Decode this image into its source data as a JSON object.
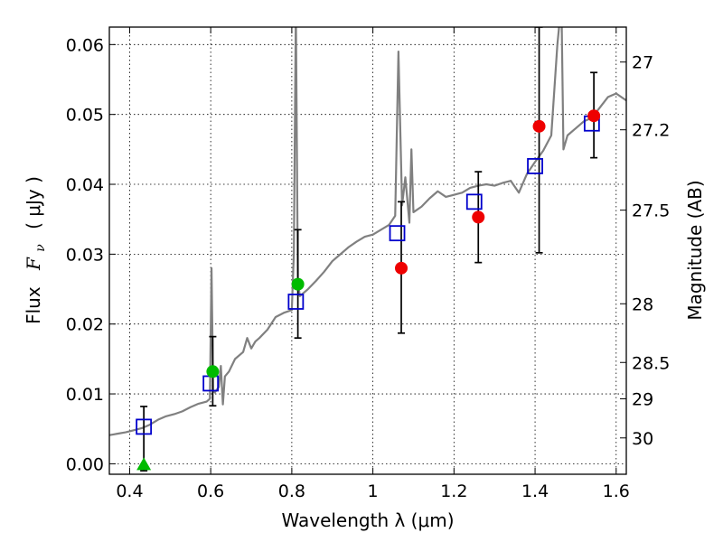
{
  "chart_data": {
    "type": "scatter",
    "title": "",
    "xlabel": "Wavelength  λ (μm)",
    "ylabel": "Flux  F_ν ( μJy )",
    "ylabel_parts": {
      "word": "Flux",
      "symbol": "F",
      "subscript": "ν",
      "unit": "( μJy )"
    },
    "y2label": "Magnitude (AB)",
    "xlim": [
      0.35,
      1.625
    ],
    "ylim": [
      -0.0015,
      0.0625
    ],
    "grid": true,
    "x_ticks": [
      {
        "value": 0.4,
        "label": "0.4"
      },
      {
        "value": 0.6,
        "label": "0.6"
      },
      {
        "value": 0.8,
        "label": "0.8"
      },
      {
        "value": 1.0,
        "label": "1"
      },
      {
        "value": 1.2,
        "label": "1.2"
      },
      {
        "value": 1.4,
        "label": "1.4"
      },
      {
        "value": 1.6,
        "label": "1.6"
      }
    ],
    "y_ticks": [
      {
        "value": 0.0,
        "label": "0.00"
      },
      {
        "value": 0.01,
        "label": "0.01"
      },
      {
        "value": 0.02,
        "label": "0.02"
      },
      {
        "value": 0.03,
        "label": "0.03"
      },
      {
        "value": 0.04,
        "label": "0.04"
      },
      {
        "value": 0.05,
        "label": "0.05"
      },
      {
        "value": 0.06,
        "label": "0.06"
      }
    ],
    "y2_ticks": [
      {
        "label": "27",
        "flux": 0.0575
      },
      {
        "label": "27.2",
        "flux": 0.0478
      },
      {
        "label": "27.5",
        "flux": 0.0363
      },
      {
        "label": "28",
        "flux": 0.0229
      },
      {
        "label": "28.5",
        "flux": 0.0145
      },
      {
        "label": "29",
        "flux": 0.0093
      },
      {
        "label": "30",
        "flux": 0.0037
      }
    ],
    "colors": {
      "model": "#808080",
      "model_points": "#0000cc",
      "detections": "#ee0000",
      "weak_detections": "#00bb00",
      "upper_limit": "#00bb00",
      "errorbars": "#000000"
    },
    "series": [
      {
        "type": "line",
        "points": [
          [
            0.35,
            0.0041
          ],
          [
            0.37,
            0.0043
          ],
          [
            0.39,
            0.0045
          ],
          [
            0.41,
            0.0048
          ],
          [
            0.43,
            0.0051
          ],
          [
            0.45,
            0.0056
          ],
          [
            0.47,
            0.0063
          ],
          [
            0.49,
            0.0068
          ],
          [
            0.51,
            0.0071
          ],
          [
            0.53,
            0.0075
          ],
          [
            0.55,
            0.0081
          ],
          [
            0.57,
            0.0086
          ],
          [
            0.59,
            0.0089
          ],
          [
            0.598,
            0.0093
          ],
          [
            0.602,
            0.028
          ],
          [
            0.606,
            0.0105
          ],
          [
            0.61,
            0.0102
          ],
          [
            0.62,
            0.011
          ],
          [
            0.625,
            0.014
          ],
          [
            0.63,
            0.0085
          ],
          [
            0.635,
            0.0125
          ],
          [
            0.645,
            0.0132
          ],
          [
            0.66,
            0.015
          ],
          [
            0.68,
            0.016
          ],
          [
            0.69,
            0.018
          ],
          [
            0.7,
            0.0165
          ],
          [
            0.71,
            0.0175
          ],
          [
            0.72,
            0.018
          ],
          [
            0.74,
            0.0192
          ],
          [
            0.76,
            0.021
          ],
          [
            0.78,
            0.0216
          ],
          [
            0.8,
            0.022
          ],
          [
            0.805,
            0.03
          ],
          [
            0.81,
            0.065
          ],
          [
            0.815,
            0.026
          ],
          [
            0.82,
            0.024
          ],
          [
            0.84,
            0.025
          ],
          [
            0.86,
            0.0262
          ],
          [
            0.88,
            0.0275
          ],
          [
            0.9,
            0.029
          ],
          [
            0.92,
            0.03
          ],
          [
            0.94,
            0.031
          ],
          [
            0.96,
            0.0318
          ],
          [
            0.98,
            0.0325
          ],
          [
            1.0,
            0.0328
          ],
          [
            1.02,
            0.0335
          ],
          [
            1.04,
            0.0342
          ],
          [
            1.055,
            0.0355
          ],
          [
            1.063,
            0.059
          ],
          [
            1.072,
            0.037
          ],
          [
            1.08,
            0.041
          ],
          [
            1.09,
            0.0345
          ],
          [
            1.095,
            0.045
          ],
          [
            1.1,
            0.036
          ],
          [
            1.12,
            0.0368
          ],
          [
            1.14,
            0.038
          ],
          [
            1.16,
            0.039
          ],
          [
            1.18,
            0.0382
          ],
          [
            1.2,
            0.0385
          ],
          [
            1.22,
            0.0388
          ],
          [
            1.24,
            0.0395
          ],
          [
            1.26,
            0.0398
          ],
          [
            1.28,
            0.04
          ],
          [
            1.3,
            0.0398
          ],
          [
            1.32,
            0.0402
          ],
          [
            1.34,
            0.0405
          ],
          [
            1.36,
            0.0388
          ],
          [
            1.38,
            0.0415
          ],
          [
            1.4,
            0.0432
          ],
          [
            1.42,
            0.0448
          ],
          [
            1.44,
            0.047
          ],
          [
            1.455,
            0.06
          ],
          [
            1.465,
            0.066
          ],
          [
            1.47,
            0.045
          ],
          [
            1.48,
            0.047
          ],
          [
            1.5,
            0.048
          ],
          [
            1.52,
            0.049
          ],
          [
            1.54,
            0.0495
          ],
          [
            1.56,
            0.051
          ],
          [
            1.58,
            0.0525
          ],
          [
            1.6,
            0.053
          ],
          [
            1.625,
            0.052
          ]
        ]
      },
      {
        "type": "scatter",
        "marker": "open-square",
        "x": [
          0.435,
          0.6,
          0.81,
          1.06,
          1.25,
          1.4,
          1.54
        ],
        "y": [
          0.0053,
          0.0115,
          0.0232,
          0.033,
          0.0375,
          0.0426,
          0.0487
        ]
      },
      {
        "type": "scatter",
        "marker": "filled-circle",
        "x": [
          1.07,
          1.26,
          1.41,
          1.545
        ],
        "y": [
          0.028,
          0.0353,
          0.0483,
          0.0498
        ]
      },
      {
        "type": "scatter",
        "marker": "filled-circle",
        "x": [
          0.605,
          0.815
        ],
        "y": [
          0.0132,
          0.0257
        ]
      },
      {
        "type": "scatter",
        "marker": "triangle-up",
        "x": [
          0.435
        ],
        "y": [
          0.0
        ]
      },
      {
        "type": "errorbar",
        "bars": [
          {
            "x": 0.435,
            "low": -0.001,
            "high": 0.0082
          },
          {
            "x": 0.605,
            "low": 0.0083,
            "high": 0.0182
          },
          {
            "x": 0.815,
            "low": 0.018,
            "high": 0.0335
          },
          {
            "x": 1.07,
            "low": 0.0187,
            "high": 0.0375
          },
          {
            "x": 1.26,
            "low": 0.0288,
            "high": 0.0418
          },
          {
            "x": 1.41,
            "low": 0.0302,
            "high": 0.0625
          },
          {
            "x": 1.545,
            "low": 0.0438,
            "high": 0.056
          }
        ]
      }
    ]
  }
}
